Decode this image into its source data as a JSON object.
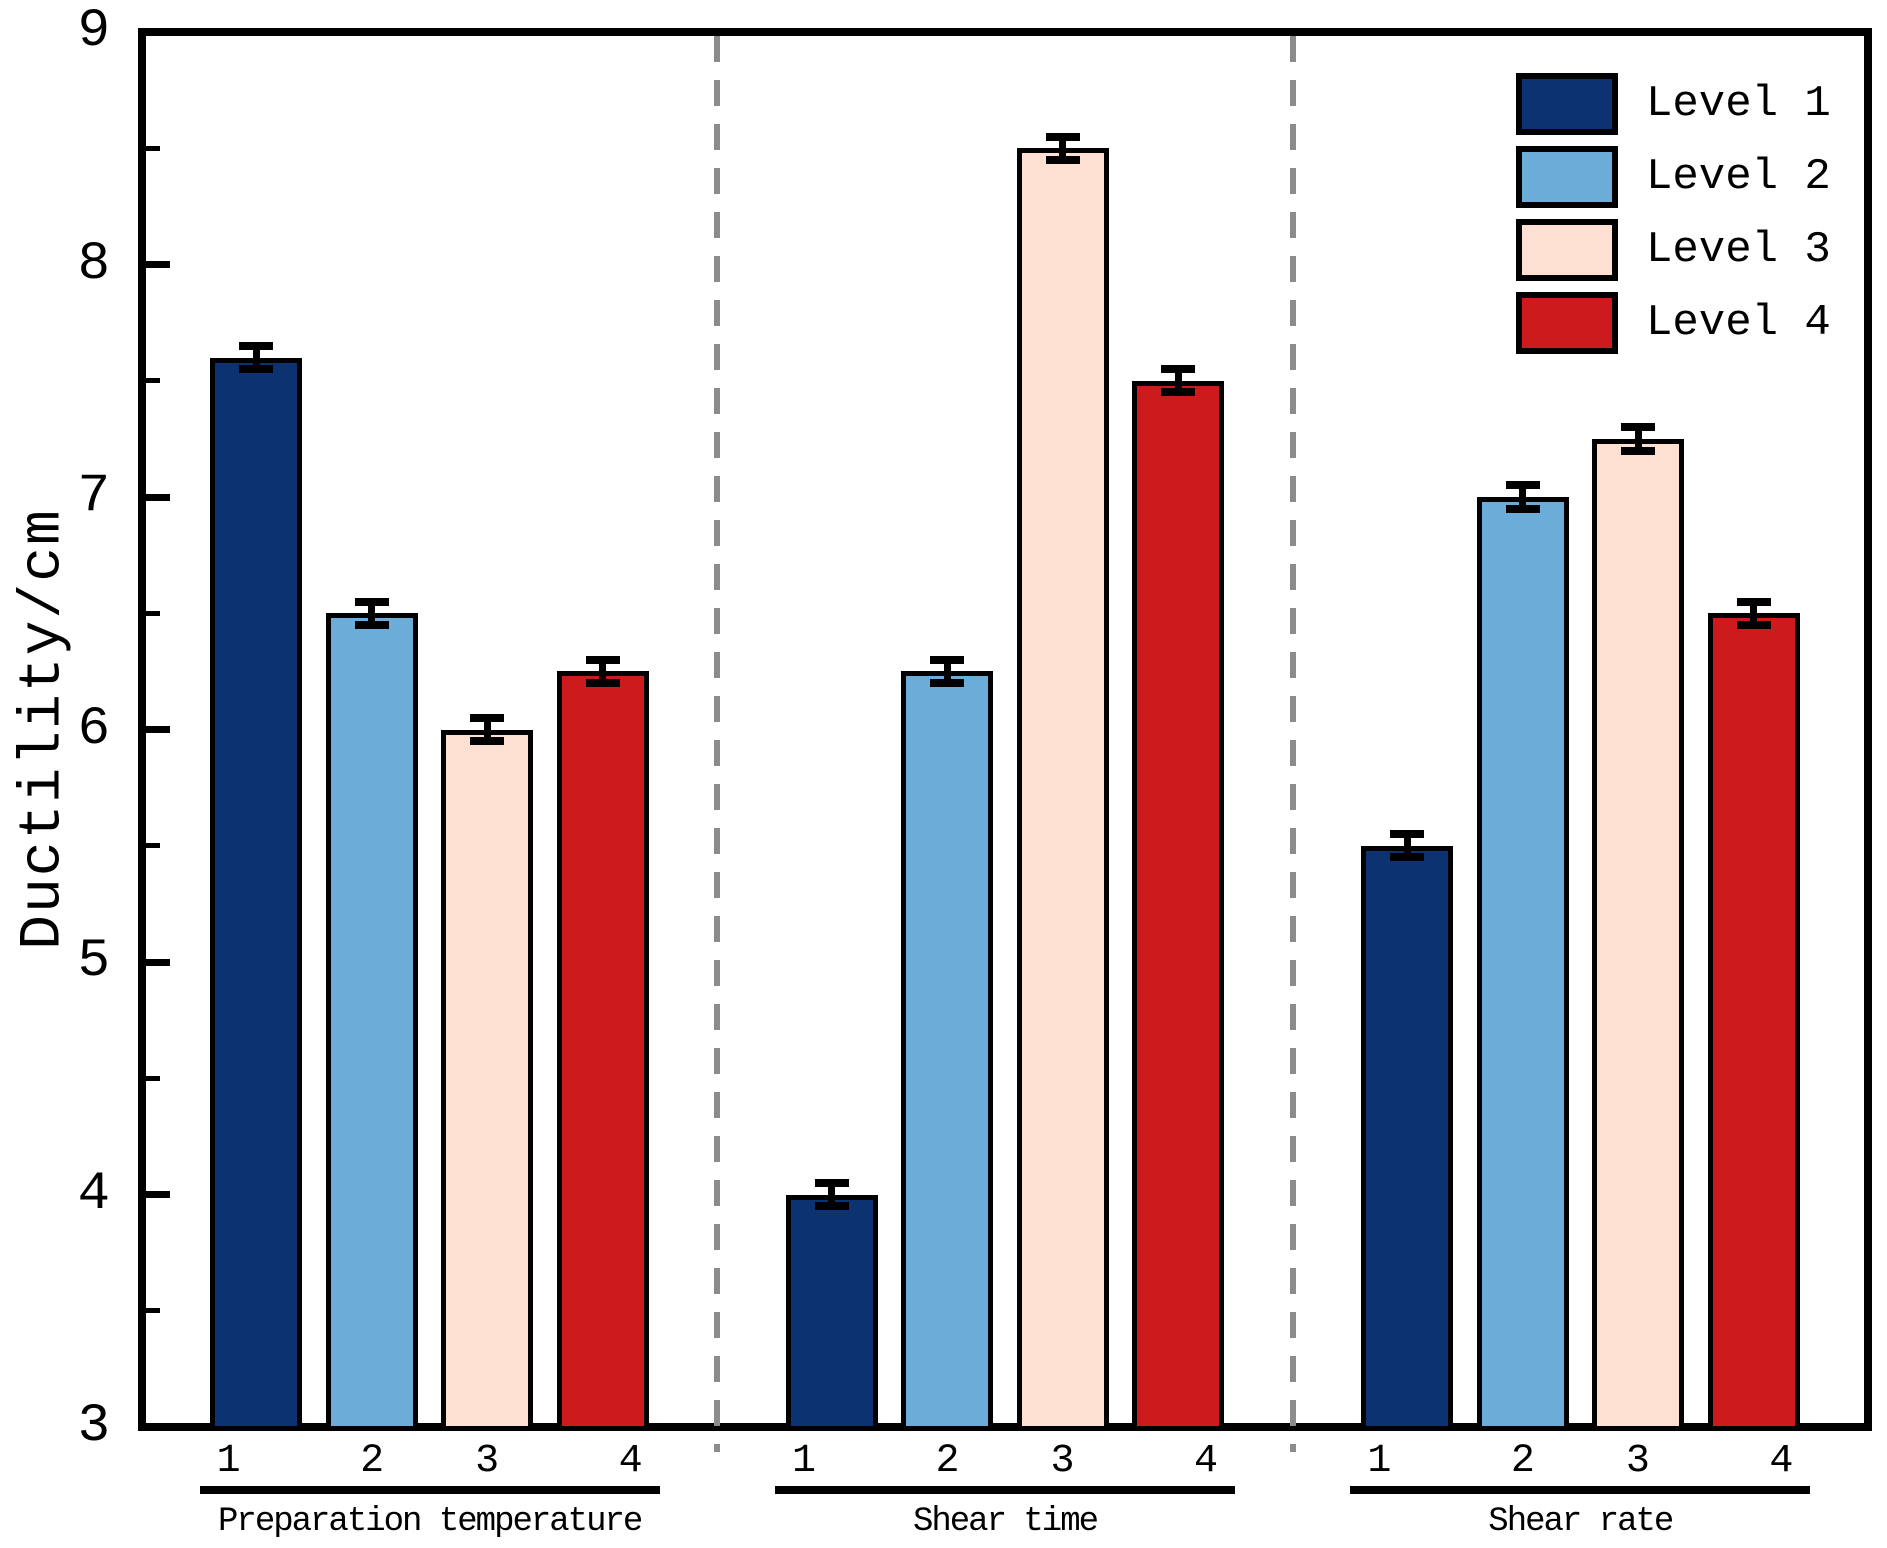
{
  "figure": {
    "background": "#ffffff",
    "frame_color": "#000000",
    "separator_color": "#8c8c8c"
  },
  "chart_data": {
    "type": "bar",
    "title": "",
    "xlabel": "",
    "ylabel": "Ductility/cm",
    "ylim": [
      3,
      9
    ],
    "y_major_ticks": [
      3,
      4,
      5,
      6,
      7,
      8,
      9
    ],
    "y_minor_ticks": [
      3.5,
      4.5,
      5.5,
      6.5,
      7.5,
      8.5
    ],
    "grid": false,
    "legend_position": "top-right",
    "categories": [
      "Preparation temperature",
      "Shear time",
      "Shear rate"
    ],
    "group_bar_tick_labels": [
      "1",
      "2",
      "3",
      "4"
    ],
    "series": [
      {
        "name": "Level 1",
        "color": "#0c3271",
        "values": [
          7.6,
          4.0,
          5.5
        ],
        "errors": [
          0.05,
          0.05,
          0.05
        ]
      },
      {
        "name": "Level 2",
        "color": "#6badd8",
        "values": [
          6.5,
          6.25,
          7.0
        ],
        "errors": [
          0.05,
          0.05,
          0.05
        ]
      },
      {
        "name": "Level 3",
        "color": "#fde0d2",
        "values": [
          6.0,
          8.5,
          7.25
        ],
        "errors": [
          0.05,
          0.05,
          0.05
        ]
      },
      {
        "name": "Level 4",
        "color": "#cd1a1c",
        "values": [
          6.25,
          7.5,
          6.5
        ],
        "errors": [
          0.05,
          0.05,
          0.05
        ]
      }
    ],
    "bar_edge_color": "#000000",
    "error_bar_color": "#000000"
  }
}
